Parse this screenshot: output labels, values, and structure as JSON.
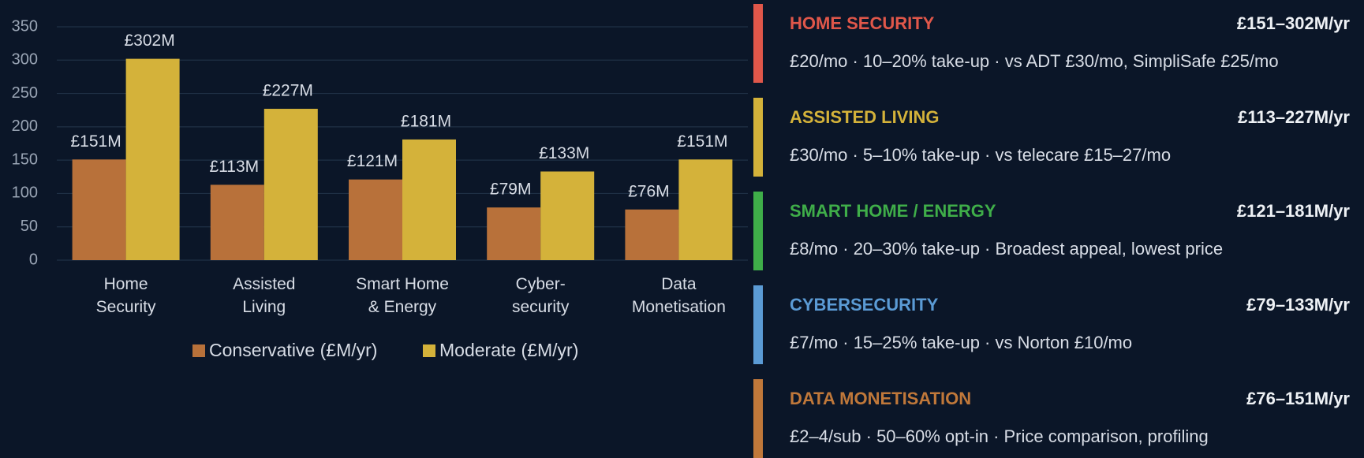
{
  "chart_data": {
    "type": "bar",
    "categories": [
      "Home\nSecurity",
      "Assisted\nLiving",
      "Smart Home\n& Energy",
      "Cyber-\nsecurity",
      "Data\nMonetisation"
    ],
    "series": [
      {
        "name": "Conservative (£M/yr)",
        "color": "#b8713a",
        "values": [
          151,
          113,
          121,
          79,
          76
        ],
        "value_labels": [
          "£151M",
          "£113M",
          "£121M",
          "£79M",
          "£76M"
        ]
      },
      {
        "name": "Moderate (£M/yr)",
        "color": "#d4b23a",
        "values": [
          302,
          227,
          181,
          133,
          151
        ],
        "value_labels": [
          "£302M",
          "£227M",
          "£181M",
          "£133M",
          "£151M"
        ]
      }
    ],
    "ylim": [
      0,
      350
    ],
    "yticks": [
      0,
      50,
      100,
      150,
      200,
      250,
      300,
      350
    ],
    "grid": true,
    "legend": "bottom"
  },
  "panels": [
    {
      "title": "HOME SECURITY",
      "range": "£151–302M/yr",
      "color": "#e0574a",
      "description": "£20/mo · 10–20% take-up · vs ADT £30/mo, SimpliSafe £25/mo"
    },
    {
      "title": "ASSISTED LIVING",
      "range": "£113–227M/yr",
      "color": "#d4b23a",
      "description": "£30/mo · 5–10% take-up · vs telecare £15–27/mo"
    },
    {
      "title": "SMART HOME / ENERGY",
      "range": "£121–181M/yr",
      "color": "#3fae49",
      "description": "£8/mo · 20–30% take-up · Broadest appeal, lowest price"
    },
    {
      "title": "CYBERSECURITY",
      "range": "£79–133M/yr",
      "color": "#5b9bd5",
      "description": "£7/mo · 15–25% take-up · vs Norton £10/mo"
    },
    {
      "title": "DATA MONETISATION",
      "range": "£76–151M/yr",
      "color": "#c0783a",
      "description": "£2–4/sub · 50–60% opt-in · Price comparison, profiling"
    }
  ]
}
